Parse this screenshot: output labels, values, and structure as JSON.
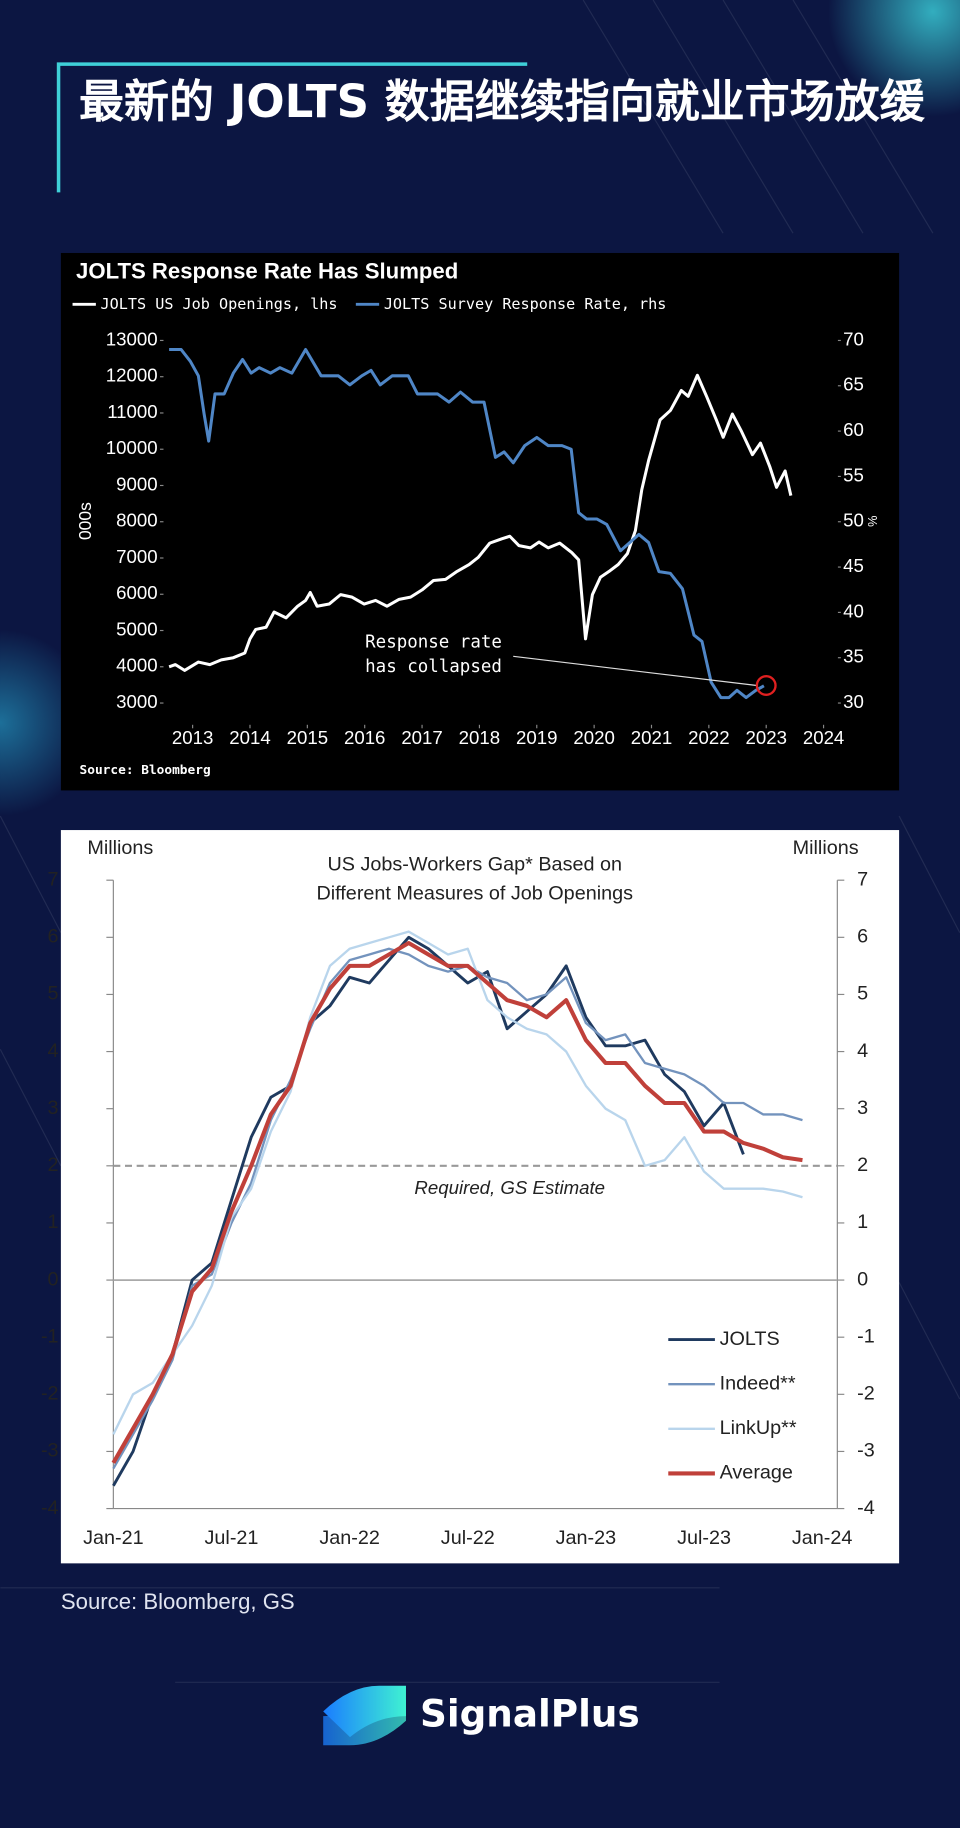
{
  "header": {
    "title": "最新的 JOLTS 数据继续指向就业市场放缓"
  },
  "chart_data": [
    {
      "type": "line",
      "title": "JOLTS Response Rate Has Slumped",
      "legend": "top",
      "grid": false,
      "ylabel": "000s",
      "y2label": "%",
      "xlim": [
        2012.5,
        2024.25
      ],
      "xticks": [
        2013,
        2014,
        2015,
        2016,
        2017,
        2018,
        2019,
        2020,
        2021,
        2022,
        2023,
        2024
      ],
      "ylim": [
        2400,
        13300
      ],
      "yticks": [
        3000,
        4000,
        5000,
        6000,
        7000,
        8000,
        9000,
        10000,
        11000,
        12000,
        13000
      ],
      "y2lim": [
        27.6,
        71.2
      ],
      "y2ticks": [
        30,
        35,
        40,
        45,
        50,
        55,
        60,
        65,
        70
      ],
      "series": [
        {
          "name": "JOLTS US Job Openings, lhs",
          "color": "#ffffff",
          "x": [
            2012.59,
            2012.7,
            2012.86,
            2013.1,
            2013.3,
            2013.5,
            2013.71,
            2013.91,
            2014.0,
            2014.1,
            2014.28,
            2014.42,
            2014.63,
            2014.83,
            2014.97,
            2015.05,
            2015.17,
            2015.38,
            2015.58,
            2015.78,
            2015.99,
            2016.19,
            2016.39,
            2016.6,
            2016.8,
            2017.0,
            2017.2,
            2017.41,
            2017.61,
            2017.82,
            2017.98,
            2018.18,
            2018.39,
            2018.53,
            2018.69,
            2018.89,
            2019.04,
            2019.2,
            2019.4,
            2019.61,
            2019.73,
            2019.85,
            2019.97,
            2020.11,
            2020.26,
            2020.42,
            2020.58,
            2020.72,
            2020.83,
            2020.95,
            2021.15,
            2021.33,
            2021.52,
            2021.64,
            2021.8,
            2021.96,
            2022.13,
            2022.25,
            2022.41,
            2022.57,
            2022.76,
            2022.9,
            2023.06,
            2023.18,
            2023.33,
            2023.43
          ],
          "values": [
            4000,
            4060,
            3900,
            4130,
            4060,
            4190,
            4250,
            4380,
            4770,
            5030,
            5090,
            5510,
            5350,
            5670,
            5830,
            6050,
            5670,
            5730,
            5990,
            5920,
            5730,
            5830,
            5670,
            5860,
            5920,
            6120,
            6380,
            6410,
            6630,
            6820,
            7020,
            7410,
            7530,
            7600,
            7340,
            7280,
            7440,
            7280,
            7410,
            7150,
            6950,
            4770,
            5990,
            6470,
            6630,
            6820,
            7120,
            7760,
            8880,
            9690,
            10810,
            11070,
            11620,
            11460,
            12040,
            11460,
            10810,
            10330,
            10970,
            10490,
            9850,
            10170,
            9530,
            8950,
            9400,
            8720
          ]
        },
        {
          "name": "JOLTS Survey Response Rate, rhs",
          "color": "#4f86c6",
          "axis": "y2",
          "x": [
            2012.59,
            2012.8,
            2012.96,
            2013.1,
            2013.2,
            2013.28,
            2013.39,
            2013.55,
            2013.71,
            2013.87,
            2014.02,
            2014.16,
            2014.36,
            2014.52,
            2014.73,
            2014.97,
            2015.24,
            2015.54,
            2015.74,
            2015.95,
            2016.11,
            2016.27,
            2016.48,
            2016.76,
            2016.92,
            2017.27,
            2017.47,
            2017.67,
            2017.88,
            2018.08,
            2018.28,
            2018.43,
            2018.59,
            2018.79,
            2019.0,
            2019.2,
            2019.44,
            2019.6,
            2019.73,
            2019.87,
            2020.05,
            2020.22,
            2020.46,
            2020.62,
            2020.78,
            2020.95,
            2021.13,
            2021.33,
            2021.54,
            2021.74,
            2021.88,
            2022.04,
            2022.21,
            2022.35,
            2022.49,
            2022.65,
            2022.82,
            2022.96
          ],
          "values": [
            69.0,
            69.0,
            67.7,
            66.1,
            61.9,
            58.9,
            64.1,
            64.1,
            66.4,
            67.9,
            66.4,
            67.0,
            66.4,
            67.0,
            66.4,
            69.0,
            66.1,
            66.1,
            65.1,
            66.1,
            66.7,
            65.1,
            66.1,
            66.1,
            64.1,
            64.1,
            63.2,
            64.3,
            63.2,
            63.2,
            57.1,
            57.7,
            56.5,
            58.4,
            59.3,
            58.4,
            58.4,
            58.0,
            51.0,
            50.3,
            50.3,
            49.7,
            46.8,
            47.7,
            48.6,
            47.7,
            44.5,
            44.3,
            42.6,
            37.5,
            36.8,
            32.3,
            30.6,
            30.6,
            31.4,
            30.6,
            31.4,
            31.9
          ]
        }
      ],
      "annotation": [
        "Response rate",
        "has collapsed"
      ],
      "source": "Source: Bloomberg"
    },
    {
      "type": "line",
      "title": [
        "US Jobs-Workers Gap* Based on",
        "Different Measures of Job Openings"
      ],
      "legend": "lower right",
      "ylabel": "Millions",
      "y2label": "Millions",
      "ylim": [
        -4,
        7
      ],
      "yticks": [
        -4,
        -3,
        -2,
        -1,
        0,
        1,
        2,
        3,
        4,
        5,
        6,
        7
      ],
      "y2lim": [
        -4,
        7
      ],
      "y2ticks": [
        -4,
        -3,
        -2,
        -1,
        0,
        1,
        2,
        3,
        4,
        5,
        6,
        7
      ],
      "categories": [
        "Jan-21",
        null,
        null,
        null,
        null,
        null,
        "Jul-21",
        null,
        null,
        null,
        null,
        null,
        "Jan-22",
        null,
        null,
        null,
        null,
        null,
        "Jul-22",
        null,
        null,
        null,
        null,
        null,
        "Jan-23",
        null,
        null,
        null,
        null,
        null,
        "Jul-23",
        null,
        null,
        null,
        null,
        null,
        "Jan-24"
      ],
      "reference_line": {
        "value": 2,
        "label": "Required, GS Estimate"
      },
      "series": [
        {
          "name": "JOLTS",
          "color": "#1f3a5f",
          "values": [
            -3.6,
            -3.0,
            -2.0,
            -1.3,
            0.0,
            0.3,
            1.4,
            2.5,
            3.2,
            3.4,
            4.5,
            4.8,
            5.3,
            5.2,
            5.6,
            6.0,
            5.8,
            5.5,
            5.2,
            5.4,
            4.4,
            4.7,
            5.0,
            5.5,
            4.6,
            4.1,
            4.1,
            4.2,
            3.6,
            3.3,
            2.7,
            3.1,
            2.2,
            null,
            null,
            null,
            null
          ]
        },
        {
          "name": "Indeed**",
          "color": "#7393bd",
          "values": [
            -3.3,
            -2.7,
            -2.1,
            -1.4,
            -0.1,
            0.1,
            1.0,
            1.7,
            2.8,
            3.5,
            4.4,
            5.2,
            5.6,
            5.7,
            5.8,
            5.7,
            5.5,
            5.4,
            5.5,
            5.3,
            5.2,
            4.9,
            5.0,
            5.3,
            4.5,
            4.2,
            4.3,
            3.8,
            3.7,
            3.6,
            3.4,
            3.1,
            3.1,
            2.9,
            2.9,
            2.8,
            null
          ]
        },
        {
          "name": "LinkUp**",
          "color": "#b9d5ec",
          "values": [
            -2.7,
            -2.0,
            -1.8,
            -1.3,
            -0.8,
            -0.1,
            1.1,
            1.6,
            2.6,
            3.3,
            4.6,
            5.5,
            5.8,
            5.9,
            6.0,
            6.1,
            5.9,
            5.7,
            5.8,
            4.9,
            4.6,
            4.4,
            4.3,
            4.0,
            3.4,
            3.0,
            2.8,
            2.0,
            2.1,
            2.5,
            1.9,
            1.6,
            1.6,
            1.6,
            1.55,
            1.45,
            null
          ]
        },
        {
          "name": "Average",
          "color": "#c0403a",
          "values": [
            -3.2,
            -2.6,
            -2.0,
            -1.3,
            -0.2,
            0.2,
            1.2,
            2.0,
            2.9,
            3.4,
            4.5,
            5.1,
            5.5,
            5.5,
            5.7,
            5.9,
            5.7,
            5.5,
            5.5,
            5.2,
            4.9,
            4.8,
            4.6,
            4.9,
            4.2,
            3.8,
            3.8,
            3.4,
            3.1,
            3.1,
            2.6,
            2.6,
            2.4,
            2.3,
            2.15,
            2.1,
            null
          ]
        }
      ]
    }
  ],
  "source": "Source: Bloomberg, GS",
  "brand": "SignalPlus"
}
